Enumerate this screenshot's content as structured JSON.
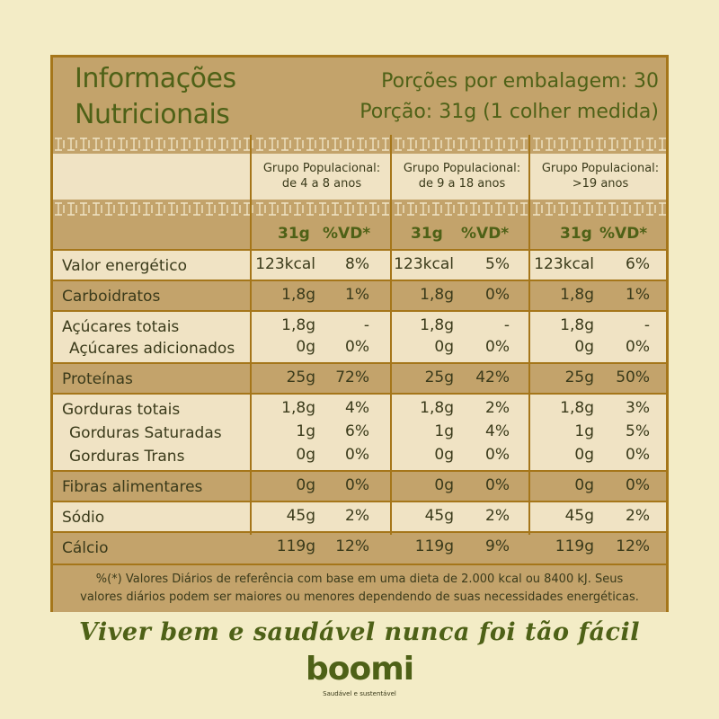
{
  "title_line1": "Informações",
  "title_line2": "Nutricionais",
  "servings_per_package": "Porções por embalagem: 30",
  "portion": "Porção: 31g (1 colher medida)",
  "groups": [
    {
      "line1": "Grupo Populacional:",
      "line2": "de 4 a 8 anos"
    },
    {
      "line1": "Grupo Populacional:",
      "line2": "de 9 a 18 anos"
    },
    {
      "line1": "Grupo Populacional:",
      "line2": ">19 anos"
    }
  ],
  "col_headers": {
    "amount": "31g",
    "vd": "%VD*"
  },
  "nutrients": {
    "energy": {
      "label": "Valor energético",
      "values": [
        [
          "123kcal",
          "8%"
        ],
        [
          "123kcal",
          "5%"
        ],
        [
          "123kcal",
          "6%"
        ]
      ]
    },
    "carbs": {
      "label": "Carboidratos",
      "values": [
        [
          "1,8g",
          "1%"
        ],
        [
          "1,8g",
          "0%"
        ],
        [
          "1,8g",
          "1%"
        ]
      ]
    },
    "sugars": {
      "label": "Açúcares totais",
      "values": [
        [
          "1,8g",
          "-"
        ],
        [
          "1,8g",
          "-"
        ],
        [
          "1,8g",
          "-"
        ]
      ]
    },
    "added_sugars": {
      "label": "Açúcares adicionados",
      "values": [
        [
          "0g",
          "0%"
        ],
        [
          "0g",
          "0%"
        ],
        [
          "0g",
          "0%"
        ]
      ]
    },
    "protein": {
      "label": "Proteínas",
      "values": [
        [
          "25g",
          "72%"
        ],
        [
          "25g",
          "42%"
        ],
        [
          "25g",
          "50%"
        ]
      ]
    },
    "fat": {
      "label": "Gorduras totais",
      "values": [
        [
          "1,8g",
          "4%"
        ],
        [
          "1,8g",
          "2%"
        ],
        [
          "1,8g",
          "3%"
        ]
      ]
    },
    "sat_fat": {
      "label": "Gorduras Saturadas",
      "values": [
        [
          "1g",
          "6%"
        ],
        [
          "1g",
          "4%"
        ],
        [
          "1g",
          "5%"
        ]
      ]
    },
    "trans_fat": {
      "label": "Gorduras Trans",
      "values": [
        [
          "0g",
          "0%"
        ],
        [
          "0g",
          "0%"
        ],
        [
          "0g",
          "0%"
        ]
      ]
    },
    "fiber": {
      "label": "Fibras alimentares",
      "values": [
        [
          "0g",
          "0%"
        ],
        [
          "0g",
          "0%"
        ],
        [
          "0g",
          "0%"
        ]
      ]
    },
    "sodium": {
      "label": "Sódio",
      "values": [
        [
          "45g",
          "2%"
        ],
        [
          "45g",
          "2%"
        ],
        [
          "45g",
          "2%"
        ]
      ]
    },
    "calcium": {
      "label": "Cálcio",
      "values": [
        [
          "119g",
          "12%"
        ],
        [
          "119g",
          "9%"
        ],
        [
          "119g",
          "12%"
        ]
      ]
    }
  },
  "footnote_line1": "%(*) Valores Diários de referência com base em uma dieta de 2.000 kcal ou 8400 kJ. Seus",
  "footnote_line2": "valores diários podem ser maiores ou menores dependendo de suas necessidades energéticas.",
  "slogan": "Viver bem e saudável nunca foi tão fácil",
  "brand": "boomi",
  "brand_tagline": "Saudável e sustentável",
  "colors": {
    "background": "#f3ecc6",
    "panel": "#f0e3c4",
    "band": "#c3a36b",
    "border": "#a5761a",
    "title_green": "#4e6117"
  }
}
